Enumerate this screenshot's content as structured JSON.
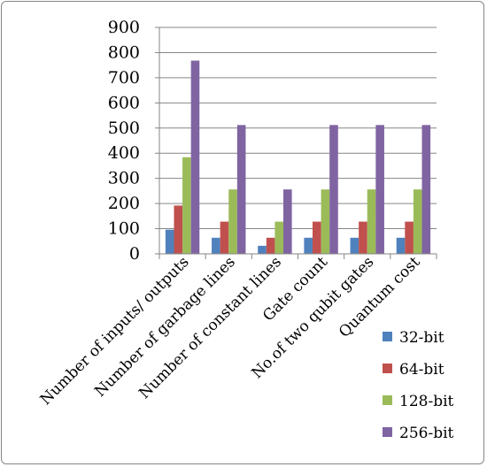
{
  "chart_data": {
    "type": "bar",
    "categories": [
      "Number of inputs/ outputs",
      "Number of garbage lines",
      "Number of constant lines",
      "Gate count",
      "No.of two qubit gates",
      "Quantum cost"
    ],
    "series": [
      {
        "name": "32-bit",
        "color": "#4f81bd",
        "values": [
          96,
          64,
          32,
          64,
          64,
          64
        ]
      },
      {
        "name": "64-bit",
        "color": "#c0504d",
        "values": [
          192,
          128,
          64,
          128,
          128,
          128
        ]
      },
      {
        "name": "128-bit",
        "color": "#9bbb59",
        "values": [
          384,
          256,
          128,
          256,
          256,
          256
        ]
      },
      {
        "name": "256-bit",
        "color": "#8064a2",
        "values": [
          768,
          512,
          256,
          512,
          512,
          512
        ]
      }
    ],
    "yticks": [
      "0",
      "100",
      "200",
      "300",
      "400",
      "500",
      "600",
      "700",
      "800",
      "900"
    ],
    "ylim": [
      0,
      900
    ],
    "grid": true,
    "legend": "right"
  }
}
